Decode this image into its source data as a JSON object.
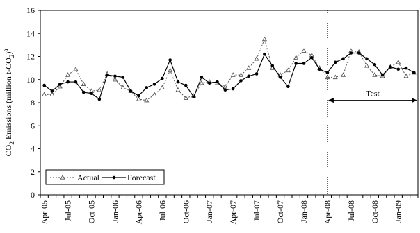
{
  "chart_data": {
    "type": "line",
    "title": "",
    "xlabel": "",
    "ylabel": "CO2 Emissions (million t-CO2)a",
    "ylabel_parts": {
      "pre": "CO",
      "sub1": "2",
      "mid": " Emissions (million t-CO",
      "sub2": "2",
      "post": ")",
      "sup": "a"
    },
    "ylim": [
      0,
      16
    ],
    "yticks": [
      "0",
      "2",
      "4",
      "6",
      "8",
      "10",
      "12",
      "14",
      "16"
    ],
    "x": [
      "Apr-05",
      "May-05",
      "Jun-05",
      "Jul-05",
      "Aug-05",
      "Sep-05",
      "Oct-05",
      "Nov-05",
      "Dec-05",
      "Jan-06",
      "Feb-06",
      "Mar-06",
      "Apr-06",
      "May-06",
      "Jun-06",
      "Jul-06",
      "Aug-06",
      "Sep-06",
      "Oct-06",
      "Nov-06",
      "Dec-06",
      "Jan-07",
      "Feb-07",
      "Mar-07",
      "Apr-07",
      "May-07",
      "Jun-07",
      "Jul-07",
      "Aug-07",
      "Sep-07",
      "Oct-07",
      "Nov-07",
      "Dec-07",
      "Jan-08",
      "Feb-08",
      "Mar-08",
      "Apr-08",
      "May-08",
      "Jun-08",
      "Jul-08",
      "Aug-08",
      "Sep-08",
      "Oct-08",
      "Nov-08",
      "Dec-08",
      "Jan-09",
      "Feb-09",
      "Mar-09"
    ],
    "xtick_labels": [
      "Apr-05",
      "Jul-05",
      "Oct-05",
      "Jan-06",
      "Apr-06",
      "Jul-06",
      "Oct-06",
      "Jan-07",
      "Apr-07",
      "Jul-07",
      "Oct-07",
      "Jan-08",
      "Apr-08",
      "Jul-08",
      "Oct-08",
      "Jan-09"
    ],
    "series": [
      {
        "name": "Actual",
        "values": [
          8.7,
          8.7,
          9.4,
          10.4,
          10.9,
          9.6,
          9.0,
          9.1,
          10.5,
          10.0,
          9.3,
          9.0,
          8.3,
          8.2,
          8.7,
          9.3,
          10.8,
          9.1,
          8.4,
          8.6,
          9.7,
          9.8,
          9.7,
          9.4,
          10.4,
          10.4,
          11.0,
          11.8,
          13.5,
          11.0,
          10.4,
          10.8,
          11.9,
          12.5,
          12.1,
          11.0,
          10.2,
          10.2,
          10.4,
          12.5,
          12.4,
          11.2,
          10.4,
          10.3,
          11.1,
          11.5,
          10.3,
          10.6
        ],
        "color": "#555555"
      },
      {
        "name": "Forecast",
        "values": [
          9.5,
          9.0,
          9.6,
          9.8,
          9.8,
          8.9,
          8.8,
          8.3,
          10.4,
          10.3,
          10.2,
          9.0,
          8.6,
          9.3,
          9.6,
          10.1,
          11.7,
          9.8,
          9.5,
          8.5,
          10.2,
          9.7,
          9.8,
          9.1,
          9.2,
          9.9,
          10.3,
          10.5,
          12.2,
          11.2,
          10.2,
          9.4,
          11.4,
          11.4,
          11.9,
          10.9,
          10.6,
          11.5,
          11.8,
          12.3,
          12.3,
          11.8,
          11.3,
          10.4,
          11.1,
          10.9,
          11.0,
          10.6
        ],
        "color": "#000000"
      }
    ],
    "legend": {
      "position": "bottom-left",
      "entries": [
        "Actual",
        "Forecast"
      ]
    },
    "annotations": {
      "split_at": "Apr-08",
      "test_label": "Test"
    },
    "grid": false
  }
}
